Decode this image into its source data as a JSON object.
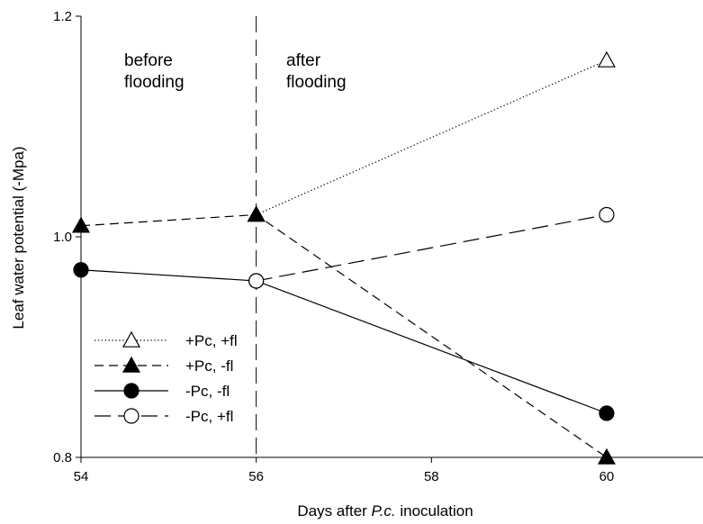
{
  "chart_data": {
    "type": "line",
    "xlabel_prefix": "Days after ",
    "xlabel_italic": "P.c.",
    "xlabel_suffix": " inoculation",
    "ylabel": "Leaf water potential (-Mpa)",
    "xlim": [
      54,
      61.1
    ],
    "ylim": [
      0.8,
      1.2
    ],
    "xticks": [
      54,
      56,
      58,
      60
    ],
    "yticks": [
      0.8,
      1.0,
      1.2
    ],
    "ytick_labels": [
      "0.8",
      "1.0",
      "1.2"
    ],
    "annotations": [
      {
        "lines": [
          "before",
          "flooding"
        ]
      },
      {
        "lines": [
          "after",
          "flooding"
        ]
      }
    ],
    "divider_x": 56,
    "series": [
      {
        "name": "+Pc, +fl",
        "marker": "triangle-open",
        "line": "dotted",
        "points": [
          [
            56,
            1.02
          ],
          [
            60,
            1.16
          ]
        ]
      },
      {
        "name": "+Pc, -fl",
        "marker": "triangle-filled",
        "line": "dashed",
        "points": [
          [
            54,
            1.01
          ],
          [
            56,
            1.02
          ],
          [
            60,
            0.8
          ]
        ]
      },
      {
        "name": "-Pc, -fl",
        "marker": "circle-filled",
        "line": "solid",
        "points": [
          [
            54,
            0.97
          ],
          [
            56,
            0.96
          ],
          [
            60,
            0.84
          ]
        ]
      },
      {
        "name": "-Pc, +fl",
        "marker": "circle-open",
        "line": "long-dashed",
        "points": [
          [
            56,
            0.96
          ],
          [
            60,
            1.02
          ]
        ]
      }
    ],
    "legend_position": "lower-left"
  }
}
